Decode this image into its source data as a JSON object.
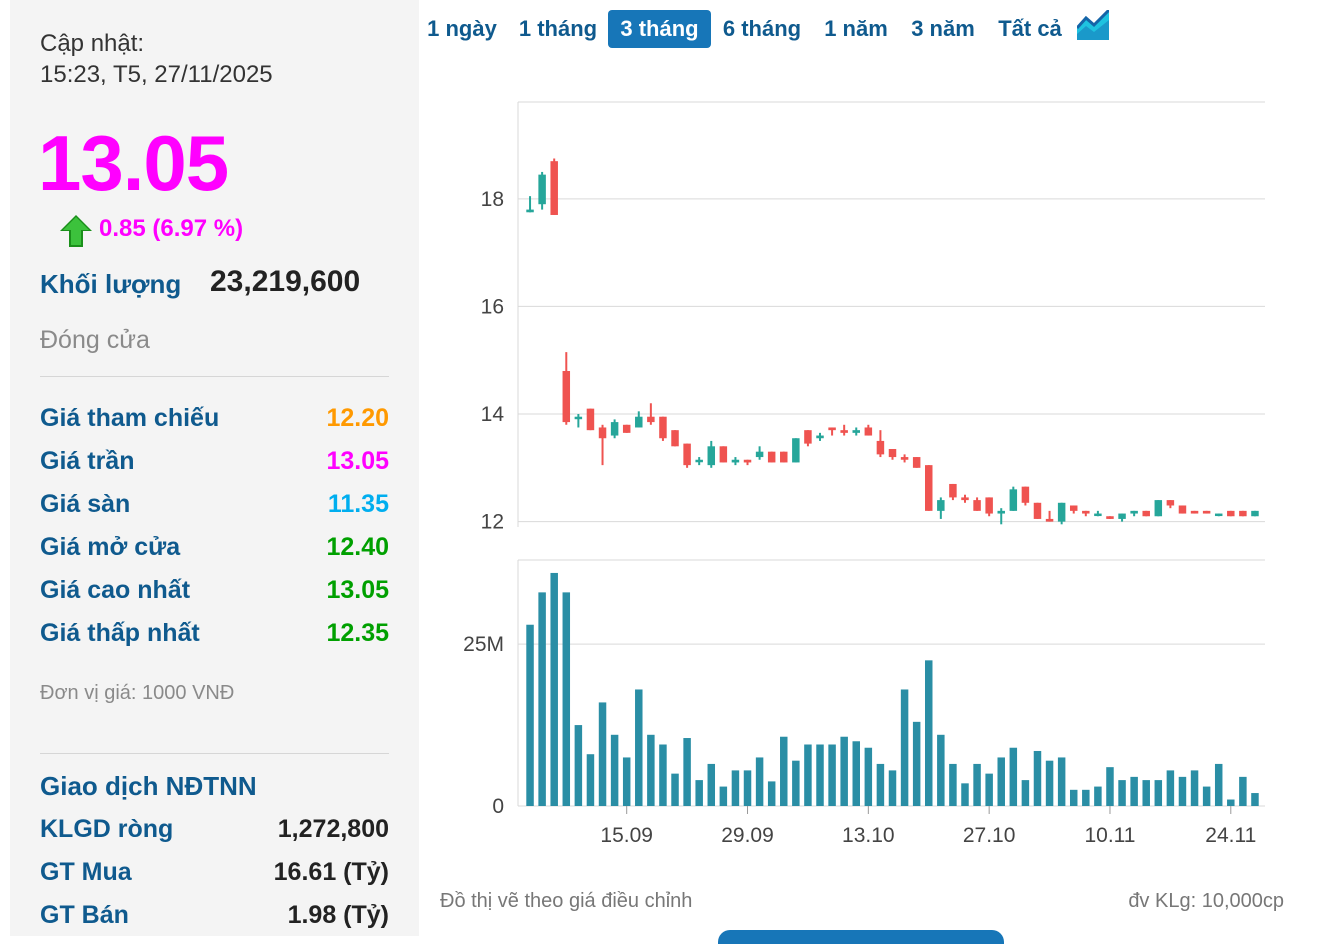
{
  "update": {
    "label": "Cập nhật:",
    "time": "15:23, T5, 27/11/2025"
  },
  "price": "13.05",
  "change": "0.85 (6.97 %)",
  "volume": {
    "label": "Khối lượng",
    "value": "23,219,600"
  },
  "status": "Đóng cửa",
  "stats": [
    {
      "label": "Giá tham chiếu",
      "value": "12.20",
      "color": "#ff9900"
    },
    {
      "label": "Giá trần",
      "value": "13.05",
      "color": "#ff00ff"
    },
    {
      "label": "Giá sàn",
      "value": "11.35",
      "color": "#00aeef"
    },
    {
      "label": "Giá mở cửa",
      "value": "12.40",
      "color": "#00a000"
    },
    {
      "label": "Giá cao nhất",
      "value": "13.05",
      "color": "#00a000"
    },
    {
      "label": "Giá thấp nhất",
      "value": "12.35",
      "color": "#00a000"
    }
  ],
  "unit_note": "Đơn vị giá: 1000 VNĐ",
  "foreign": {
    "title": "Giao dịch NĐTNN",
    "rows": [
      {
        "label": "KLGD ròng",
        "value": "1,272,800"
      },
      {
        "label": "GT Mua",
        "value": "16.61 (Tỷ)"
      },
      {
        "label": "GT Bán",
        "value": "1.98 (Tỷ)"
      }
    ]
  },
  "tabs": [
    "1 ngày",
    "1 tháng",
    "3 tháng",
    "6 tháng",
    "1 năm",
    "3 năm",
    "Tất cả"
  ],
  "active_tab": "3 tháng",
  "footer": {
    "left": "Đồ thị vẽ theo giá điều chỉnh",
    "right": "đv KLg: 10,000cp"
  },
  "colors": {
    "up": "#26a69a",
    "down": "#ef5350",
    "volume": "#2a8ea5",
    "accent": "#1776b8"
  },
  "chart_data": {
    "type": "candlestick",
    "price_ticks": [
      "12",
      "14",
      "16",
      "18"
    ],
    "volume_ticks": [
      "0",
      "25M"
    ],
    "x_ticks": [
      "15.09",
      "29.09",
      "13.10",
      "27.10",
      "10.11",
      "24.11"
    ],
    "price_range": [
      11.9,
      19.8
    ],
    "volume_range": [
      0,
      38000000
    ],
    "candles": [
      {
        "o": 17.75,
        "h": 18.05,
        "l": 17.75,
        "c": 17.8,
        "v": 28000000
      },
      {
        "o": 17.9,
        "h": 18.5,
        "l": 17.8,
        "c": 18.45,
        "v": 33000000
      },
      {
        "o": 18.7,
        "h": 18.75,
        "l": 17.7,
        "c": 17.7,
        "v": 36000000
      },
      {
        "o": 14.8,
        "h": 15.15,
        "l": 13.8,
        "c": 13.85,
        "v": 33000000
      },
      {
        "o": 13.95,
        "h": 14.0,
        "l": 13.75,
        "c": 13.95,
        "v": 12500000
      },
      {
        "o": 14.1,
        "h": 14.1,
        "l": 13.7,
        "c": 13.7,
        "v": 8000000
      },
      {
        "o": 13.75,
        "h": 13.8,
        "l": 13.05,
        "c": 13.55,
        "v": 16000000
      },
      {
        "o": 13.6,
        "h": 13.9,
        "l": 13.55,
        "c": 13.85,
        "v": 11000000
      },
      {
        "o": 13.8,
        "h": 13.8,
        "l": 13.65,
        "c": 13.65,
        "v": 7500000
      },
      {
        "o": 13.75,
        "h": 14.05,
        "l": 13.75,
        "c": 13.95,
        "v": 18000000
      },
      {
        "o": 13.95,
        "h": 14.2,
        "l": 13.8,
        "c": 13.85,
        "v": 11000000
      },
      {
        "o": 13.95,
        "h": 13.95,
        "l": 13.5,
        "c": 13.55,
        "v": 9500000
      },
      {
        "o": 13.7,
        "h": 13.7,
        "l": 13.4,
        "c": 13.4,
        "v": 5000000
      },
      {
        "o": 13.45,
        "h": 13.45,
        "l": 13.0,
        "c": 13.05,
        "v": 10500000
      },
      {
        "o": 13.15,
        "h": 13.2,
        "l": 13.05,
        "c": 13.15,
        "v": 4000000
      },
      {
        "o": 13.05,
        "h": 13.5,
        "l": 13.0,
        "c": 13.4,
        "v": 6500000
      },
      {
        "o": 13.4,
        "h": 13.4,
        "l": 13.1,
        "c": 13.1,
        "v": 3000000
      },
      {
        "o": 13.1,
        "h": 13.2,
        "l": 13.05,
        "c": 13.15,
        "v": 5500000
      },
      {
        "o": 13.15,
        "h": 13.15,
        "l": 13.05,
        "c": 13.1,
        "v": 5500000
      },
      {
        "o": 13.2,
        "h": 13.4,
        "l": 13.15,
        "c": 13.3,
        "v": 7500000
      },
      {
        "o": 13.3,
        "h": 13.3,
        "l": 13.1,
        "c": 13.1,
        "v": 3800000
      },
      {
        "o": 13.3,
        "h": 13.3,
        "l": 13.1,
        "c": 13.1,
        "v": 10700000
      },
      {
        "o": 13.1,
        "h": 13.55,
        "l": 13.1,
        "c": 13.55,
        "v": 7000000
      },
      {
        "o": 13.7,
        "h": 13.7,
        "l": 13.4,
        "c": 13.45,
        "v": 9500000
      },
      {
        "o": 13.55,
        "h": 13.65,
        "l": 13.5,
        "c": 13.6,
        "v": 9500000
      },
      {
        "o": 13.75,
        "h": 13.75,
        "l": 13.6,
        "c": 13.7,
        "v": 9500000
      },
      {
        "o": 13.7,
        "h": 13.8,
        "l": 13.6,
        "c": 13.65,
        "v": 10700000
      },
      {
        "o": 13.65,
        "h": 13.75,
        "l": 13.6,
        "c": 13.7,
        "v": 10000000
      },
      {
        "o": 13.75,
        "h": 13.8,
        "l": 13.6,
        "c": 13.6,
        "v": 9000000
      },
      {
        "o": 13.5,
        "h": 13.7,
        "l": 13.2,
        "c": 13.25,
        "v": 6500000
      },
      {
        "o": 13.35,
        "h": 13.35,
        "l": 13.15,
        "c": 13.2,
        "v": 5500000
      },
      {
        "o": 13.2,
        "h": 13.25,
        "l": 13.1,
        "c": 13.15,
        "v": 18000000
      },
      {
        "o": 13.2,
        "h": 13.2,
        "l": 13.0,
        "c": 13.0,
        "v": 13000000
      },
      {
        "o": 13.05,
        "h": 13.05,
        "l": 12.2,
        "c": 12.2,
        "v": 22500000
      },
      {
        "o": 12.2,
        "h": 12.45,
        "l": 12.05,
        "c": 12.4,
        "v": 11000000
      },
      {
        "o": 12.7,
        "h": 12.7,
        "l": 12.4,
        "c": 12.45,
        "v": 6500000
      },
      {
        "o": 12.45,
        "h": 12.5,
        "l": 12.35,
        "c": 12.4,
        "v": 3500000
      },
      {
        "o": 12.4,
        "h": 12.45,
        "l": 12.2,
        "c": 12.2,
        "v": 6500000
      },
      {
        "o": 12.45,
        "h": 12.45,
        "l": 12.1,
        "c": 12.15,
        "v": 5000000
      },
      {
        "o": 12.15,
        "h": 12.25,
        "l": 11.95,
        "c": 12.2,
        "v": 7500000
      },
      {
        "o": 12.2,
        "h": 12.65,
        "l": 12.2,
        "c": 12.6,
        "v": 9000000
      },
      {
        "o": 12.65,
        "h": 12.65,
        "l": 12.3,
        "c": 12.35,
        "v": 4000000
      },
      {
        "o": 12.35,
        "h": 12.35,
        "l": 12.05,
        "c": 12.05,
        "v": 8500000
      },
      {
        "o": 12.05,
        "h": 12.2,
        "l": 12.0,
        "c": 12.0,
        "v": 7000000
      },
      {
        "o": 12.0,
        "h": 12.35,
        "l": 11.95,
        "c": 12.35,
        "v": 7500000
      },
      {
        "o": 12.3,
        "h": 12.3,
        "l": 12.15,
        "c": 12.2,
        "v": 2500000
      },
      {
        "o": 12.2,
        "h": 12.2,
        "l": 12.1,
        "c": 12.15,
        "v": 2500000
      },
      {
        "o": 12.15,
        "h": 12.2,
        "l": 12.1,
        "c": 12.15,
        "v": 3000000
      },
      {
        "o": 12.1,
        "h": 12.1,
        "l": 12.05,
        "c": 12.05,
        "v": 6000000
      },
      {
        "o": 12.05,
        "h": 12.15,
        "l": 12.0,
        "c": 12.15,
        "v": 4000000
      },
      {
        "o": 12.15,
        "h": 12.2,
        "l": 12.1,
        "c": 12.2,
        "v": 4500000
      },
      {
        "o": 12.2,
        "h": 12.2,
        "l": 12.1,
        "c": 12.1,
        "v": 4000000
      },
      {
        "o": 12.1,
        "h": 12.4,
        "l": 12.1,
        "c": 12.4,
        "v": 4000000
      },
      {
        "o": 12.4,
        "h": 12.4,
        "l": 12.25,
        "c": 12.3,
        "v": 5500000
      },
      {
        "o": 12.3,
        "h": 12.3,
        "l": 12.15,
        "c": 12.15,
        "v": 4500000
      },
      {
        "o": 12.2,
        "h": 12.2,
        "l": 12.15,
        "c": 12.15,
        "v": 5500000
      },
      {
        "o": 12.2,
        "h": 12.2,
        "l": 12.15,
        "c": 12.15,
        "v": 3000000
      },
      {
        "o": 12.15,
        "h": 12.15,
        "l": 12.1,
        "c": 12.15,
        "v": 6500000
      },
      {
        "o": 12.2,
        "h": 12.2,
        "l": 12.1,
        "c": 12.1,
        "v": 1000000
      },
      {
        "o": 12.2,
        "h": 12.2,
        "l": 12.1,
        "c": 12.1,
        "v": 4500000
      },
      {
        "o": 12.1,
        "h": 12.2,
        "l": 12.1,
        "c": 12.2,
        "v": 2000000
      }
    ]
  }
}
